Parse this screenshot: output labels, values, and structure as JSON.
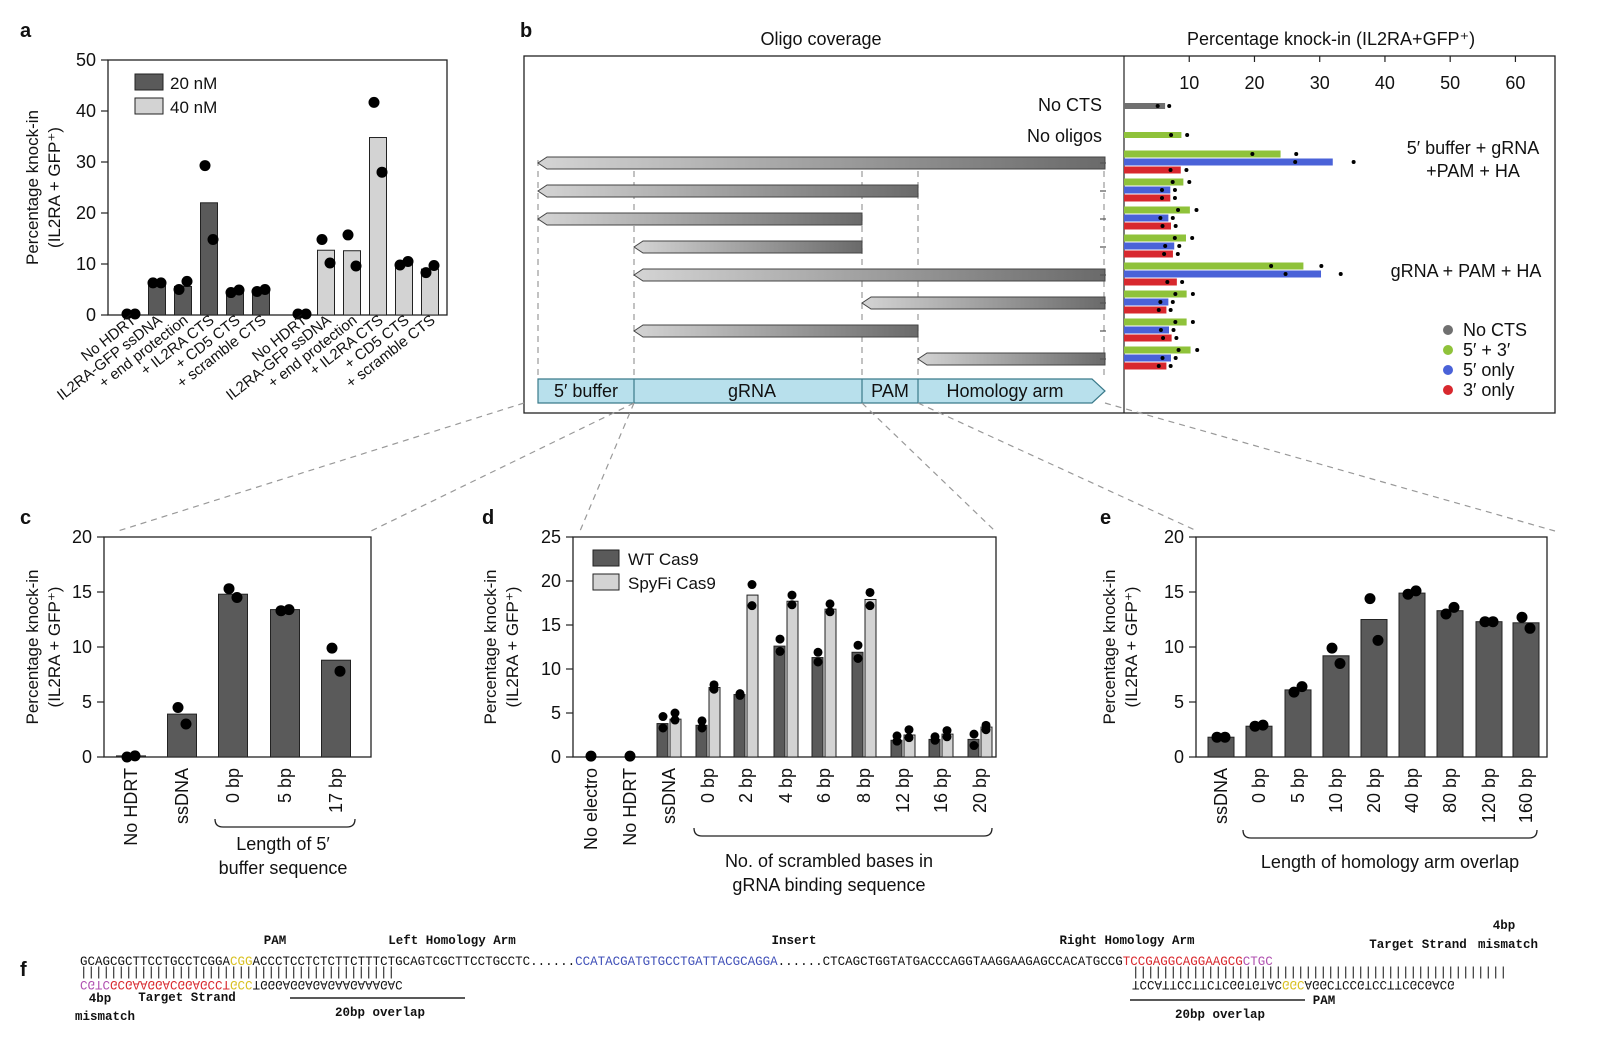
{
  "panels": {
    "a": "a",
    "b": "b",
    "c": "c",
    "d": "d",
    "e": "e",
    "f": "f"
  },
  "colors": {
    "dark": "#5a5a5a",
    "light": "#d3d3d3",
    "gray": "#707070",
    "green": "#8fc23a",
    "blue": "#4a62d8",
    "red": "#d8282e",
    "teal": "#b8e0ec",
    "magenta": "#b050b0",
    "pam": "#d8c020",
    "insert": "#4050b8"
  },
  "chart_data": [
    {
      "id": "a",
      "type": "bar",
      "ylabel": [
        "Percentage knock-in",
        "(IL2RA + GFP⁺)"
      ],
      "ylim": [
        0,
        50
      ],
      "yticks": [
        0,
        10,
        20,
        30,
        40,
        50
      ],
      "categories": [
        "No HDRT",
        "IL2RA-GFP ssDNA",
        "+ end protection",
        "+ IL2RA CTS",
        "+ CD5 CTS",
        "+ scramble CTS"
      ],
      "series": [
        {
          "name": "20 nM",
          "values": [
            0.2,
            6.2,
            5.6,
            22,
            4.6,
            4.8
          ],
          "points": [
            [
              0.2,
              0.2
            ],
            [
              6.3,
              6.3
            ],
            [
              5.0,
              6.6
            ],
            [
              29.3,
              14.8
            ],
            [
              4.4,
              4.9
            ],
            [
              4.6,
              5.0
            ]
          ]
        },
        {
          "name": "40 nM",
          "values": [
            0.2,
            12.7,
            12.6,
            34.8,
            10.2,
            9.0
          ],
          "points": [
            [
              0.2,
              0.2
            ],
            [
              14.8,
              10.2
            ],
            [
              15.7,
              9.6
            ],
            [
              41.7,
              28.0
            ],
            [
              9.8,
              10.5
            ],
            [
              8.3,
              9.7
            ]
          ]
        }
      ]
    },
    {
      "id": "b",
      "type": "bar",
      "left_title": "Oligo coverage",
      "right_title": "Percentage knock-in (IL2RA+GFP⁺)",
      "xlim": [
        0,
        63
      ],
      "xticks": [
        10,
        20,
        30,
        40,
        50,
        60
      ],
      "row_labels": [
        "No CTS",
        "No oligos"
      ],
      "annotations": [
        "5′ buffer + gRNA",
        "+PAM + HA",
        "gRNA + PAM + HA"
      ],
      "segments": [
        "5′ buffer",
        "gRNA",
        "PAM",
        "Homology arm"
      ],
      "legend": [
        "No CTS",
        "5′ + 3′",
        "5′ only",
        "3′ only"
      ],
      "groups": [
        {
          "label": "No CTS",
          "bars": [
            {
              "series": "No CTS",
              "value": 6.3
            }
          ]
        },
        {
          "label": "No oligos",
          "bars": [
            {
              "series": "5′ + 3′",
              "value": 8.8
            }
          ]
        },
        {
          "label": "full",
          "bars": [
            {
              "series": "5′ + 3′",
              "value": 24
            },
            {
              "series": "5′ only",
              "value": 32
            },
            {
              "series": "3′ only",
              "value": 8.7
            }
          ]
        },
        {
          "label": "buffer-gRNA-PAM",
          "bars": [
            {
              "series": "5′ + 3′",
              "value": 9.1
            },
            {
              "series": "5′ only",
              "value": 7.1
            },
            {
              "series": "3′ only",
              "value": 7.1
            }
          ]
        },
        {
          "label": "buffer-gRNA",
          "bars": [
            {
              "series": "5′ + 3′",
              "value": 10.1
            },
            {
              "series": "5′ only",
              "value": 6.8
            },
            {
              "series": "3′ only",
              "value": 7.2
            }
          ]
        },
        {
          "label": "gRNA",
          "bars": [
            {
              "series": "5′ + 3′",
              "value": 9.5
            },
            {
              "series": "5′ only",
              "value": 7.7
            },
            {
              "series": "3′ only",
              "value": 7.5
            }
          ]
        },
        {
          "label": "gRNA-PAM-HA",
          "bars": [
            {
              "series": "5′ + 3′",
              "value": 27.5
            },
            {
              "series": "5′ only",
              "value": 30.2
            },
            {
              "series": "3′ only",
              "value": 8.1
            }
          ]
        },
        {
          "label": "PAM-HA",
          "bars": [
            {
              "series": "5′ + 3′",
              "value": 9.6
            },
            {
              "series": "5′ only",
              "value": 6.8
            },
            {
              "series": "3′ only",
              "value": 6.5
            }
          ]
        },
        {
          "label": "gRNA-PAM",
          "bars": [
            {
              "series": "5′ + 3′",
              "value": 9.6
            },
            {
              "series": "5′ only",
              "value": 6.9
            },
            {
              "series": "3′ only",
              "value": 7.3
            }
          ]
        },
        {
          "label": "HA",
          "bars": [
            {
              "series": "5′ + 3′",
              "value": 10.2
            },
            {
              "series": "5′ only",
              "value": 7.2
            },
            {
              "series": "3′ only",
              "value": 6.5
            }
          ]
        }
      ]
    },
    {
      "id": "c",
      "type": "bar",
      "ylabel": [
        "Percentage knock-in",
        "(IL2RA + GFP⁺)"
      ],
      "ylim": [
        0,
        20
      ],
      "yticks": [
        0,
        5,
        10,
        15,
        20
      ],
      "categories": [
        "No HDRT",
        "ssDNA",
        "0 bp",
        "5 bp",
        "17 bp"
      ],
      "values": [
        0.1,
        3.9,
        14.8,
        13.4,
        8.8
      ],
      "points": [
        [
          0.0,
          0.1
        ],
        [
          4.5,
          3.0
        ],
        [
          15.3,
          14.5
        ],
        [
          13.3,
          13.4
        ],
        [
          9.9,
          7.8
        ]
      ],
      "bracket_label": [
        "Length of 5′",
        "buffer sequence"
      ]
    },
    {
      "id": "d",
      "type": "bar",
      "ylabel": [
        "Percentage knock-in",
        "(IL2RA + GFP⁺)"
      ],
      "ylim": [
        0,
        25
      ],
      "yticks": [
        0,
        5,
        10,
        15,
        20,
        25
      ],
      "categories": [
        "No electro",
        "No HDRT",
        "ssDNA",
        "0 bp",
        "2 bp",
        "4 bp",
        "6 bp",
        "8 bp",
        "12 bp",
        "16 bp",
        "20 bp"
      ],
      "series": [
        {
          "name": "WT Cas9",
          "values": [
            0.05,
            0.05,
            3.8,
            3.6,
            7.1,
            12.6,
            11.3,
            11.9,
            1.9,
            2.0,
            2.0
          ],
          "points": [
            [
              0.1,
              0.1
            ],
            [
              0.1,
              0.1
            ],
            [
              4.6,
              3.3
            ],
            [
              4.1,
              3.3
            ],
            [
              7.2,
              7.0
            ],
            [
              13.4,
              12.0
            ],
            [
              11.9,
              10.8
            ],
            [
              12.7,
              11.2
            ],
            [
              2.4,
              1.8
            ],
            [
              2.3,
              1.9
            ],
            [
              2.6,
              1.3
            ]
          ]
        },
        {
          "name": "SpyFi Cas9",
          "values": [
            null,
            null,
            4.3,
            7.9,
            18.4,
            17.7,
            16.8,
            17.9,
            2.5,
            2.6,
            3.4
          ],
          "points": [
            null,
            null,
            [
              5.0,
              4.2
            ],
            [
              8.2,
              7.7
            ],
            [
              19.6,
              17.2
            ],
            [
              18.4,
              17.3
            ],
            [
              17.4,
              16.5
            ],
            [
              18.7,
              17.2
            ],
            [
              3.1,
              2.2
            ],
            [
              3.0,
              2.3
            ],
            [
              3.6,
              3.1
            ]
          ]
        }
      ],
      "bracket_label": [
        "No. of scrambled bases in",
        "gRNA binding sequence"
      ]
    },
    {
      "id": "e",
      "type": "bar",
      "ylabel": [
        "Percentage knock-in",
        "(IL2RA + GFP⁺)"
      ],
      "ylim": [
        0,
        20
      ],
      "yticks": [
        0,
        5,
        10,
        15,
        20
      ],
      "categories": [
        "ssDNA",
        "0 bp",
        "5 bp",
        "10 bp",
        "20 bp",
        "40 bp",
        "80 bp",
        "120 bp",
        "160 bp"
      ],
      "values": [
        1.8,
        2.8,
        6.1,
        9.2,
        12.5,
        14.9,
        13.3,
        12.3,
        12.2
      ],
      "points": [
        [
          1.8,
          1.8
        ],
        [
          2.8,
          2.9
        ],
        [
          5.9,
          6.4
        ],
        [
          9.9,
          8.5
        ],
        [
          14.4,
          10.6
        ],
        [
          14.8,
          15.1
        ],
        [
          13.0,
          13.6
        ],
        [
          12.3,
          12.3
        ],
        [
          12.7,
          11.7
        ]
      ],
      "bracket_label": [
        "Length of homology arm overlap"
      ]
    }
  ],
  "sequence": {
    "left_top_a": "GCAGCGCTTCCTGCCTCGGA",
    "left_top_pam": "CGG",
    "left_top_b": "ACCCTCCTCTCTTCTTTCTGCAGTCGCTTCCTGCCTC",
    "dots": "......",
    "insert": "CCATACGATGTGCCTGATTACGCAGGA",
    "right_top_a": "CTCAGCTGGTATGACCCAGGTAAGGAAGAGCCACATGCCG",
    "right_top_red": "TCCGAGGCAGGAAGCG",
    "right_top_mag": "CTGC",
    "ticks_left": "||||||||||||||||||||||||||||||||||||||||||",
    "ticks_right": "||||||||||||||||||||||||||||||||||||||||||||||||||",
    "left_bot_mag": "CGTC",
    "left_bot_red": "GCGAAGGACGGAGCCT",
    "left_bot_pam": "GCC",
    "left_bot_b": "TGGGAGGAGAGAAGAAAGAC",
    "right_bot_a": "TCCATTCCTTCTCGGTGTAC",
    "right_bot_pam": "GGC",
    "right_bot_b": "AGGCTCCGTCCTTCGCGACG",
    "labels": {
      "pam": "PAM",
      "left_ha": "Left Homology Arm",
      "insert": "Insert",
      "right_ha": "Right Homology Arm",
      "target": "Target Strand",
      "bp4": "4bp",
      "mismatch": "mismatch",
      "overlap": "20bp overlap"
    }
  }
}
